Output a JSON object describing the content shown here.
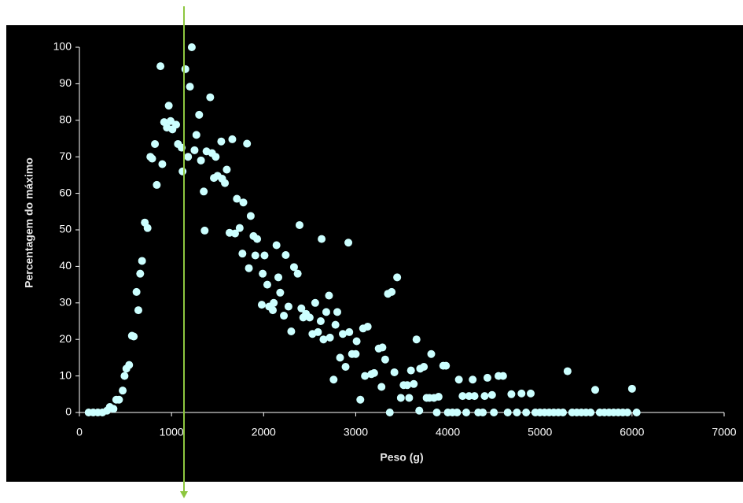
{
  "chart_data": {
    "type": "scatter",
    "x_label": "Peso (g)",
    "y_label": "Percentagem do máximo",
    "color": "#ccffff",
    "x": [
      100,
      150,
      200,
      250,
      300,
      330,
      370,
      400,
      430,
      470,
      490,
      510,
      540,
      570,
      590,
      620,
      640,
      660,
      680,
      710,
      740,
      770,
      790,
      820,
      840,
      880,
      900,
      920,
      950,
      970,
      990,
      1010,
      1050,
      1070,
      1110,
      1120,
      1150,
      1180,
      1200,
      1220,
      1250,
      1270,
      1300,
      1320,
      1350,
      1360,
      1380,
      1420,
      1440,
      1460,
      1480,
      1500,
      1540,
      1550,
      1580,
      1600,
      1630,
      1660,
      1690,
      1710,
      1740,
      1770,
      1780,
      1820,
      1840,
      1860,
      1890,
      1910,
      1930,
      1980,
      1990,
      2010,
      2040,
      2060,
      2100,
      2110,
      2140,
      2160,
      2180,
      2220,
      2240,
      2270,
      2300,
      2330,
      2370,
      2390,
      2410,
      2430,
      2460,
      2500,
      2530,
      2560,
      2590,
      2620,
      2630,
      2650,
      2680,
      2710,
      2720,
      2760,
      2780,
      2800,
      2830,
      2860,
      2890,
      2920,
      2930,
      2960,
      3000,
      3010,
      3050,
      3080,
      3100,
      3130,
      3170,
      3200,
      3250,
      3280,
      3290,
      3320,
      3350,
      3370,
      3390,
      3420,
      3450,
      3490,
      3520,
      3560,
      3580,
      3600,
      3630,
      3660,
      3690,
      3700,
      3740,
      3770,
      3800,
      3820,
      3850,
      3880,
      3900,
      3950,
      3980,
      4000,
      4050,
      4100,
      4120,
      4160,
      4200,
      4230,
      4270,
      4290,
      4330,
      4380,
      4400,
      4430,
      4480,
      4500,
      4550,
      4600,
      4650,
      4690,
      4750,
      4800,
      4850,
      4900,
      4950,
      5000,
      5050,
      5100,
      5150,
      5200,
      5250,
      5300,
      5350,
      5400,
      5450,
      5500,
      5550,
      5600,
      5650,
      5700,
      5750,
      5800,
      5850,
      5900,
      5950,
      6000,
      6050
    ],
    "values": [
      0,
      0,
      0,
      0,
      0.5,
      1.5,
      1,
      3.5,
      3.5,
      6,
      10,
      12,
      13,
      21,
      20.8,
      33,
      28,
      38,
      41.5,
      52,
      50.5,
      70,
      69.5,
      73.5,
      62.3,
      94.8,
      68,
      79.5,
      78,
      84,
      79.8,
      77.5,
      78.8,
      73.5,
      72.5,
      66,
      94,
      70,
      89.2,
      100,
      71.8,
      76,
      81.5,
      69,
      60.5,
      49.8,
      71.5,
      86.3,
      71,
      64.2,
      70,
      64.8,
      74.2,
      64,
      62.8,
      66.5,
      49.2,
      74.8,
      49,
      58.5,
      50.5,
      43.5,
      57.5,
      73.6,
      39.5,
      53.8,
      48.3,
      43,
      47.5,
      29.5,
      38,
      43,
      35,
      29,
      28,
      30,
      45.8,
      37,
      32.8,
      26.5,
      43.1,
      29,
      22.2,
      39.8,
      38,
      51.3,
      28.5,
      26,
      27,
      26,
      21.5,
      30,
      22,
      25,
      47.5,
      20,
      27.5,
      32,
      20.5,
      9,
      24,
      27.5,
      15,
      21.5,
      12.5,
      46.5,
      22,
      16,
      16,
      19.5,
      3.5,
      23,
      10,
      23.5,
      10.5,
      10.8,
      17.5,
      7,
      17.8,
      14.5,
      32.5,
      0,
      33,
      11,
      37,
      4,
      7.5,
      7.5,
      4,
      11.5,
      7.8,
      20,
      0.5,
      12,
      12.5,
      4,
      4,
      16,
      4,
      0,
      4.3,
      12.8,
      12.8,
      0,
      0,
      0,
      9,
      4.5,
      0,
      4.5,
      9,
      4.5,
      0,
      0,
      4.5,
      9.5,
      4.8,
      0,
      10,
      10,
      0,
      5,
      0,
      5.2,
      0,
      5.2,
      0,
      0,
      0,
      0,
      0,
      0,
      0,
      11.3,
      0,
      0,
      0,
      0,
      0,
      6.2,
      0,
      0,
      0,
      0,
      0,
      0,
      0,
      6.5,
      0
    ],
    "xlim": [
      0,
      7000
    ],
    "xticks": [
      0,
      1000,
      2000,
      3000,
      4000,
      5000,
      6000,
      7000
    ],
    "ylim": [
      0,
      100
    ],
    "yticks": [
      0,
      10,
      20,
      30,
      40,
      50,
      60,
      70,
      80,
      90,
      100
    ]
  }
}
